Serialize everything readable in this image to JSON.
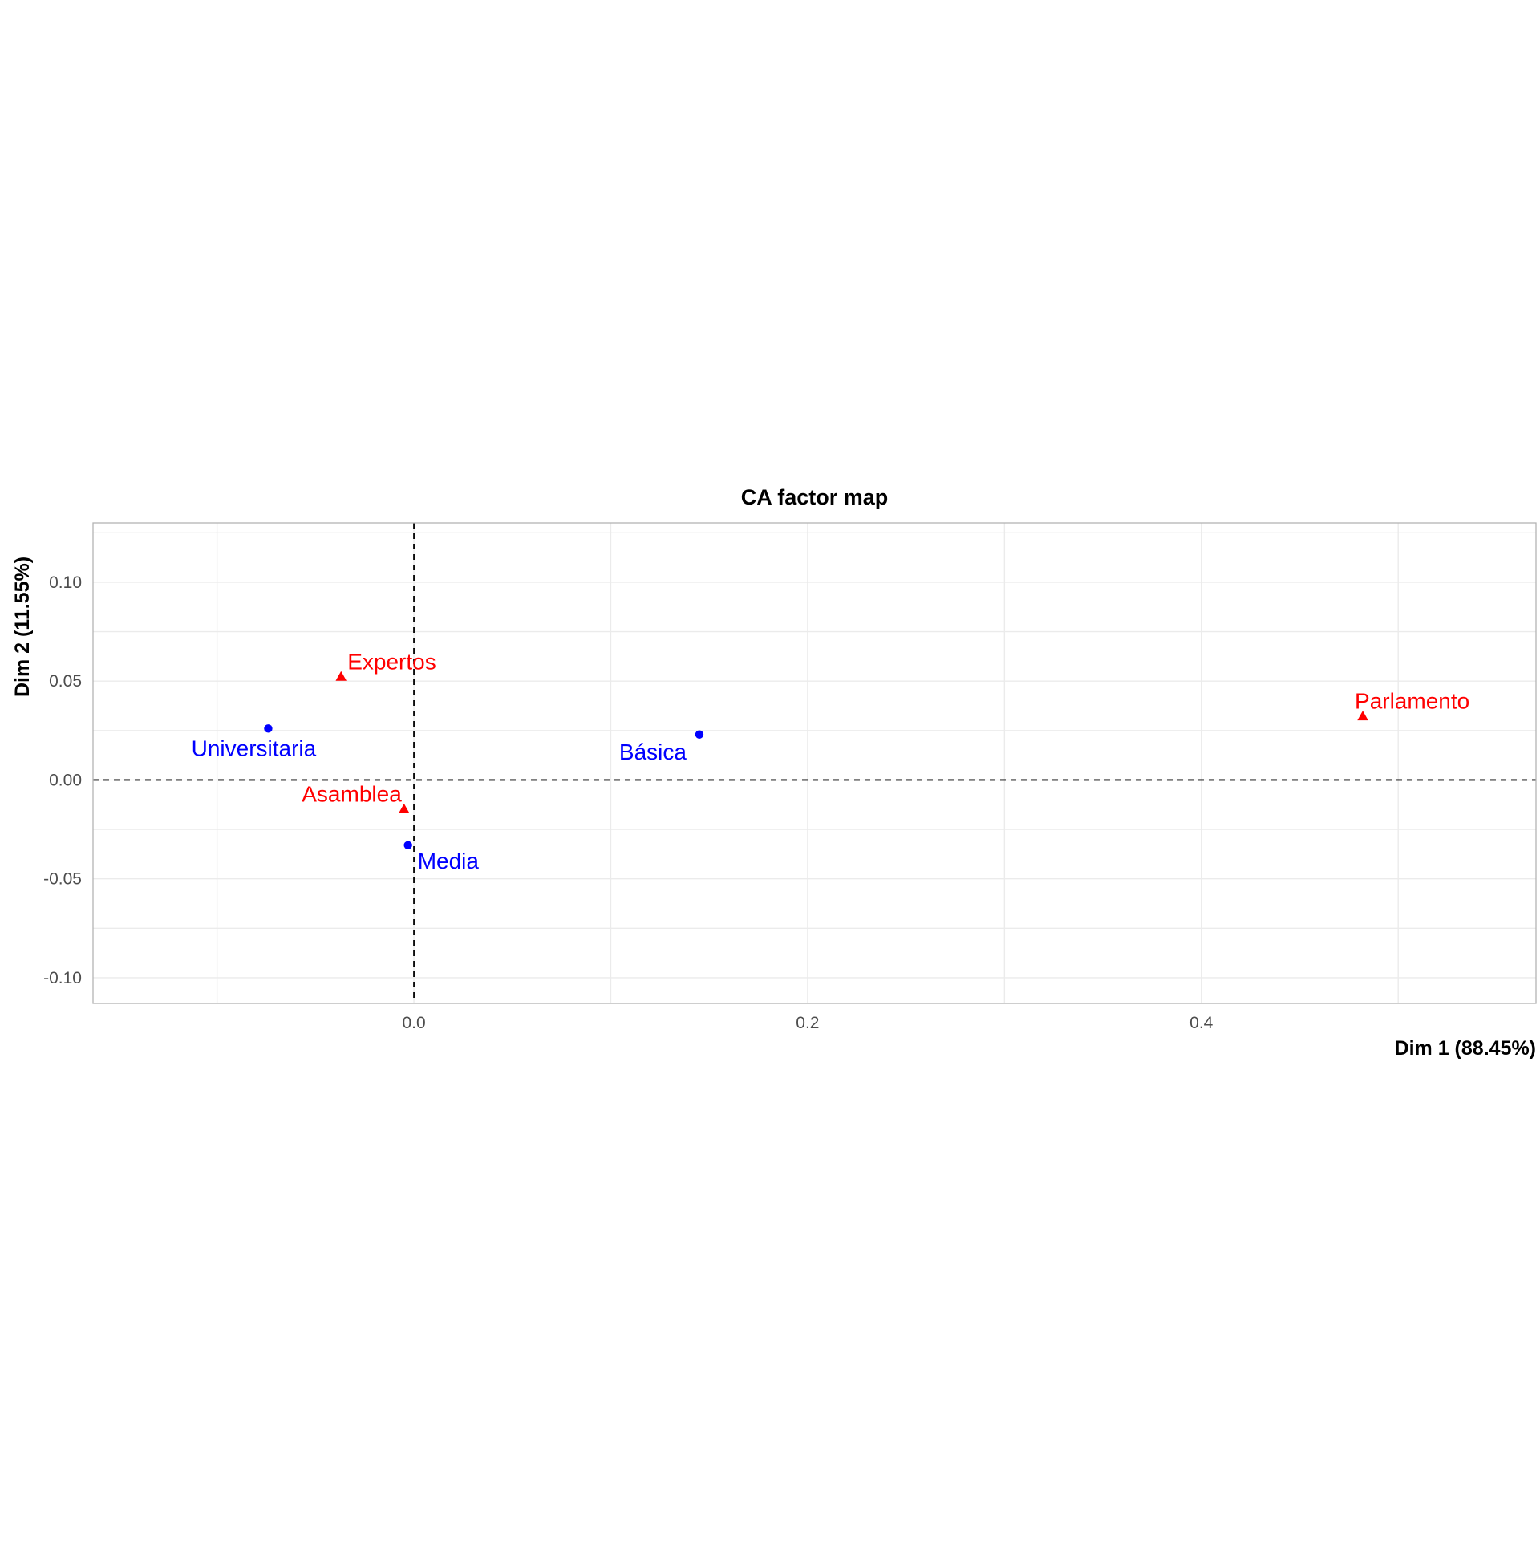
{
  "chart_data": {
    "type": "scatter",
    "title": "CA factor map",
    "xlabel": "Dim 1 (88.45%)",
    "ylabel": "Dim 2 (11.55%)",
    "xlim": [
      -0.163,
      0.57
    ],
    "ylim": [
      -0.113,
      0.13
    ],
    "x_ticks": [
      0.0,
      0.2,
      0.4
    ],
    "x_tick_labels": [
      "0.0",
      "0.2",
      "0.4"
    ],
    "y_ticks": [
      -0.1,
      -0.05,
      0.0,
      0.05,
      0.1
    ],
    "y_tick_labels": [
      "-0.10",
      "-0.05",
      "0.00",
      "0.05",
      "0.10"
    ],
    "grid": true,
    "reference_lines": {
      "x": 0,
      "y": 0,
      "style": "dashed"
    },
    "series": [
      {
        "color": "#0000ff",
        "marker": "circle",
        "points": [
          {
            "label": "Universitaria",
            "x": -0.074,
            "y": 0.026
          },
          {
            "label": "Básica",
            "x": 0.145,
            "y": 0.023
          },
          {
            "label": "Media",
            "x": -0.003,
            "y": -0.033
          }
        ]
      },
      {
        "color": "#ff0000",
        "marker": "triangle",
        "points": [
          {
            "label": "Expertos",
            "x": -0.037,
            "y": 0.052
          },
          {
            "label": "Parlamento",
            "x": 0.482,
            "y": 0.032
          },
          {
            "label": "Asamblea",
            "x": -0.005,
            "y": -0.015
          }
        ]
      }
    ]
  }
}
